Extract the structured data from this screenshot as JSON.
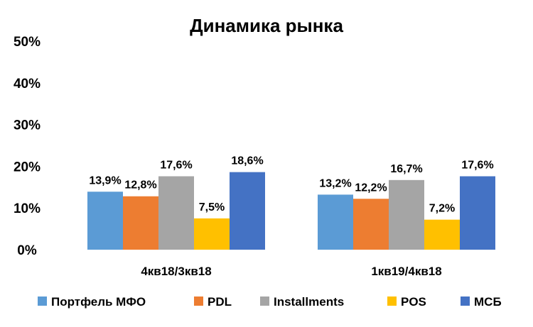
{
  "chart_data": {
    "type": "bar",
    "title": "Динамика рынка",
    "categories": [
      "4кв18/3кв18",
      "1кв19/4кв18"
    ],
    "series": [
      {
        "name": "Портфель МФО",
        "color": "#5B9BD5",
        "values": [
          13.9,
          13.2
        ],
        "labels": [
          "13,9%",
          "13,2%"
        ]
      },
      {
        "name": "PDL",
        "color": "#ED7D31",
        "values": [
          12.8,
          12.2
        ],
        "labels": [
          "12,8%",
          "12,2%"
        ]
      },
      {
        "name": "Installments",
        "color": "#A5A5A5",
        "values": [
          17.6,
          16.7
        ],
        "labels": [
          "17,6%",
          "16,7%"
        ]
      },
      {
        "name": "POS",
        "color": "#FFC000",
        "values": [
          7.5,
          7.2
        ],
        "labels": [
          "7,5%",
          "7,2%"
        ]
      },
      {
        "name": "МСБ",
        "color": "#4472C4",
        "values": [
          18.6,
          17.6
        ],
        "labels": [
          "18,6%",
          "17,6%"
        ]
      }
    ],
    "ylim": [
      0,
      50
    ],
    "yticks": [
      0,
      10,
      20,
      30,
      40,
      50
    ],
    "ytick_labels": [
      "0%",
      "10%",
      "20%",
      "30%",
      "40%",
      "50%"
    ],
    "grid": false,
    "legend_position": "bottom"
  }
}
